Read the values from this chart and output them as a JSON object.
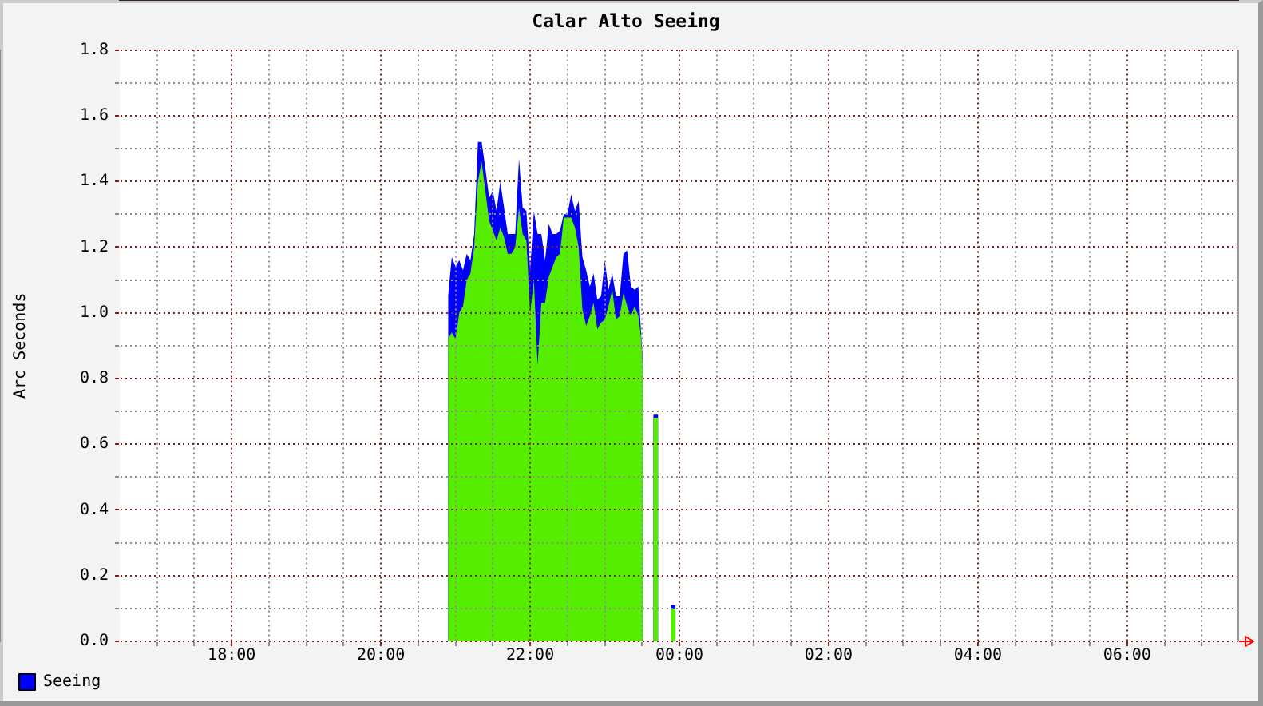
{
  "chart_data": {
    "type": "area",
    "title": "Calar Alto Seeing",
    "ylabel": "Arc Seconds",
    "x": [
      "2000-01-01T20:54",
      "2000-01-01T20:57",
      "2000-01-01T21:00",
      "2000-01-01T21:03",
      "2000-01-01T21:06",
      "2000-01-01T21:09",
      "2000-01-01T21:12",
      "2000-01-01T21:15",
      "2000-01-01T21:18",
      "2000-01-01T21:21",
      "2000-01-01T21:24",
      "2000-01-01T21:27",
      "2000-01-01T21:30",
      "2000-01-01T21:33",
      "2000-01-01T21:36",
      "2000-01-01T21:39",
      "2000-01-01T21:42",
      "2000-01-01T21:45",
      "2000-01-01T21:48",
      "2000-01-01T21:51",
      "2000-01-01T21:54",
      "2000-01-01T21:57",
      "2000-01-01T22:00",
      "2000-01-01T22:03",
      "2000-01-01T22:06",
      "2000-01-01T22:09",
      "2000-01-01T22:12",
      "2000-01-01T22:15",
      "2000-01-01T22:18",
      "2000-01-01T22:21",
      "2000-01-01T22:24",
      "2000-01-01T22:27",
      "2000-01-01T22:30",
      "2000-01-01T22:33",
      "2000-01-01T22:36",
      "2000-01-01T22:39",
      "2000-01-01T22:42",
      "2000-01-01T22:45",
      "2000-01-01T22:48",
      "2000-01-01T22:51",
      "2000-01-01T22:54",
      "2000-01-01T22:57",
      "2000-01-01T23:00",
      "2000-01-01T23:03",
      "2000-01-01T23:06",
      "2000-01-01T23:09",
      "2000-01-01T23:12",
      "2000-01-01T23:15",
      "2000-01-01T23:18",
      "2000-01-01T23:21",
      "2000-01-01T23:24",
      "2000-01-01T23:27",
      "2000-01-01T23:29",
      "2000-01-01T23:31",
      "2000-01-01T23:36",
      "2000-01-01T23:39",
      "2000-01-01T23:41",
      "2000-01-01T23:43",
      "2000-01-01T23:48",
      "2000-01-01T23:53",
      "2000-01-01T23:55",
      "2000-01-01T23:57"
    ],
    "series": [
      {
        "color": "#55ee00",
        "values": [
          0.92,
          0.94,
          0.92,
          1.0,
          1.02,
          1.1,
          1.12,
          1.2,
          1.4,
          1.46,
          1.37,
          1.28,
          1.25,
          1.22,
          1.26,
          1.23,
          1.18,
          1.18,
          1.2,
          1.32,
          1.24,
          1.22,
          1.0,
          1.1,
          0.84,
          1.03,
          1.03,
          1.11,
          1.14,
          1.17,
          1.18,
          1.29,
          1.29,
          1.29,
          1.26,
          1.2,
          1.01,
          0.96,
          0.99,
          1.03,
          0.95,
          0.97,
          0.98,
          1.02,
          1.07,
          0.98,
          0.99,
          1.06,
          1.02,
          0.99,
          1.02,
          0.99,
          0.93,
          0.82,
          null,
          0.68,
          0.68,
          0.68,
          null,
          0.1,
          0.1,
          0.1
        ]
      },
      {
        "name": "Seeing",
        "color": "#0000ff",
        "values": [
          1.05,
          1.17,
          1.14,
          1.16,
          1.13,
          1.18,
          1.16,
          1.24,
          1.52,
          1.52,
          1.44,
          1.35,
          1.37,
          1.31,
          1.4,
          1.32,
          1.24,
          1.24,
          1.24,
          1.47,
          1.32,
          1.31,
          1.13,
          1.31,
          1.24,
          1.24,
          1.16,
          1.27,
          1.24,
          1.24,
          1.25,
          1.3,
          1.3,
          1.36,
          1.31,
          1.34,
          1.17,
          1.13,
          1.08,
          1.12,
          1.04,
          1.05,
          1.16,
          1.07,
          1.12,
          1.05,
          1.05,
          1.18,
          1.19,
          1.08,
          1.07,
          1.08,
          0.95,
          0.83,
          null,
          0.69,
          0.69,
          0.69,
          null,
          0.11,
          0.11,
          0.11
        ]
      }
    ],
    "xlim": [
      "2000-01-01T16:30",
      "2000-01-02T07:30"
    ],
    "xticks": [
      {
        "value": "2000-01-01T17:00",
        "label": null
      },
      {
        "value": "2000-01-01T17:30",
        "label": null
      },
      {
        "value": "2000-01-01T18:00",
        "label": "18:00"
      },
      {
        "value": "2000-01-01T18:30",
        "label": null
      },
      {
        "value": "2000-01-01T19:00",
        "label": null
      },
      {
        "value": "2000-01-01T19:30",
        "label": null
      },
      {
        "value": "2000-01-01T20:00",
        "label": "20:00"
      },
      {
        "value": "2000-01-01T20:30",
        "label": null
      },
      {
        "value": "2000-01-01T21:00",
        "label": null
      },
      {
        "value": "2000-01-01T21:30",
        "label": null
      },
      {
        "value": "2000-01-01T22:00",
        "label": "22:00"
      },
      {
        "value": "2000-01-01T22:30",
        "label": null
      },
      {
        "value": "2000-01-01T23:00",
        "label": null
      },
      {
        "value": "2000-01-01T23:30",
        "label": null
      },
      {
        "value": "2000-01-02T00:00",
        "label": "00:00"
      },
      {
        "value": "2000-01-02T00:30",
        "label": null
      },
      {
        "value": "2000-01-02T01:00",
        "label": null
      },
      {
        "value": "2000-01-02T01:30",
        "label": null
      },
      {
        "value": "2000-01-02T02:00",
        "label": "02:00"
      },
      {
        "value": "2000-01-02T02:30",
        "label": null
      },
      {
        "value": "2000-01-02T03:00",
        "label": null
      },
      {
        "value": "2000-01-02T03:30",
        "label": null
      },
      {
        "value": "2000-01-02T04:00",
        "label": "04:00"
      },
      {
        "value": "2000-01-02T04:30",
        "label": null
      },
      {
        "value": "2000-01-02T05:00",
        "label": null
      },
      {
        "value": "2000-01-02T05:30",
        "label": null
      },
      {
        "value": "2000-01-02T06:00",
        "label": "06:00"
      },
      {
        "value": "2000-01-02T06:30",
        "label": null
      },
      {
        "value": "2000-01-02T07:00",
        "label": null
      }
    ],
    "ylim": [
      0,
      1.8
    ],
    "yticks": [
      {
        "value": 0,
        "label": "0.0"
      },
      {
        "value": 0.1,
        "label": null
      },
      0.2,
      {
        "value": 0.3,
        "label": null
      },
      0.4,
      {
        "value": 0.5,
        "label": null
      },
      0.6,
      {
        "value": 0.7,
        "label": null
      },
      0.8,
      {
        "value": 0.9,
        "label": null
      },
      {
        "value": 1,
        "label": "1.0"
      },
      {
        "value": 1.1,
        "label": null
      },
      1.2,
      {
        "value": 1.3,
        "label": null
      },
      1.4,
      {
        "value": 1.5,
        "label": null
      },
      1.6,
      {
        "value": 1.7,
        "label": null
      },
      1.8
    ],
    "grid": true,
    "legend": "bottom left",
    "marker": "none"
  }
}
